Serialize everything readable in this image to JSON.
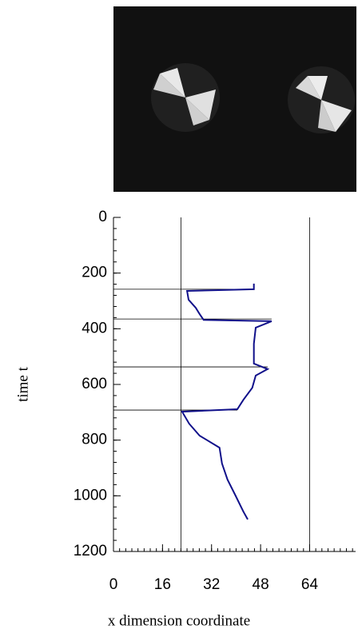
{
  "chart_data": {
    "type": "line",
    "xlabel": "x dimension coordinate",
    "ylabel": "time t",
    "xlim": [
      0,
      79
    ],
    "xticks": [
      0,
      16,
      32,
      48,
      64
    ],
    "ylim": [
      0,
      1200
    ],
    "yticks": [
      0,
      200,
      400,
      600,
      800,
      1000,
      1200
    ],
    "y_inverted": true,
    "vlines": [
      22,
      64
    ],
    "hlines": [
      258,
      365,
      537,
      692
    ],
    "series": [
      {
        "color": "#10108a",
        "x": [
          45.8,
          45.8,
          24.0,
          24.5,
          26.8,
          28.1,
          29.4,
          51.6,
          46.4,
          45.8,
          45.8,
          50.3,
          46.4,
          45.3,
          42.4,
          40.4,
          22.4,
          24.7,
          28.1,
          34.6,
          35.4,
          37.2,
          39.8,
          42.4,
          43.8
        ],
        "y": [
          238,
          258,
          264,
          296,
          324,
          347,
          368,
          373,
          396,
          454,
          525,
          545,
          568,
          612,
          655,
          689,
          698,
          741,
          784,
          827,
          884,
          942,
          999,
          1057,
          1085
        ]
      }
    ]
  }
}
